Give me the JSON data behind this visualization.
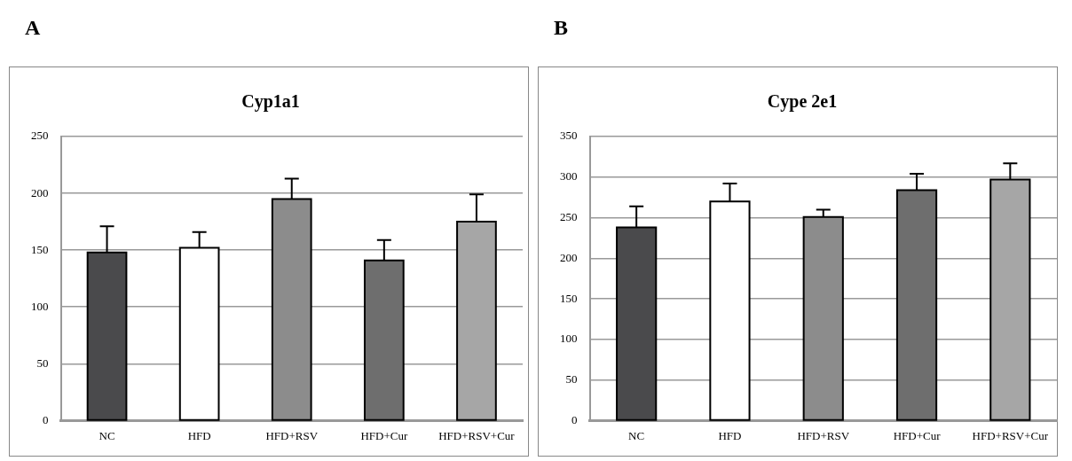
{
  "chart_data": [
    {
      "type": "bar",
      "title": "Cyp1a1",
      "annotations": [
        "A"
      ],
      "categories": [
        "NC",
        "HFD",
        "HFD+RSV",
        "HFD+Cur",
        "HFD+RSV+Cur"
      ],
      "values": [
        148,
        152,
        195,
        141,
        175
      ],
      "errors": [
        [
          148,
          171
        ],
        [
          152,
          166
        ],
        [
          195,
          213
        ],
        [
          141,
          159
        ],
        [
          175,
          199
        ]
      ],
      "colors": [
        "#4a4a4c",
        "#ffffff",
        "#8c8c8c",
        "#6e6e6e",
        "#a6a6a6"
      ],
      "ylim": [
        0,
        250
      ],
      "yticks": [
        0,
        50,
        100,
        150,
        200,
        250
      ],
      "grid": "y",
      "legend": false
    },
    {
      "type": "bar",
      "title": "Cype 2e1",
      "annotations": [
        "B"
      ],
      "categories": [
        "NC",
        "HFD",
        "HFD+RSV",
        "HFD+Cur",
        "HFD+RSV+Cur"
      ],
      "values": [
        238,
        270,
        251,
        284,
        297
      ],
      "errors": [
        [
          238,
          264
        ],
        [
          270,
          292
        ],
        [
          251,
          260
        ],
        [
          284,
          304
        ],
        [
          297,
          317
        ]
      ],
      "colors": [
        "#4a4a4c",
        "#ffffff",
        "#8c8c8c",
        "#6e6e6e",
        "#a6a6a6"
      ],
      "ylim": [
        0,
        350
      ],
      "yticks": [
        0,
        50,
        100,
        150,
        200,
        250,
        300,
        350
      ],
      "grid": "y",
      "legend": false
    }
  ]
}
